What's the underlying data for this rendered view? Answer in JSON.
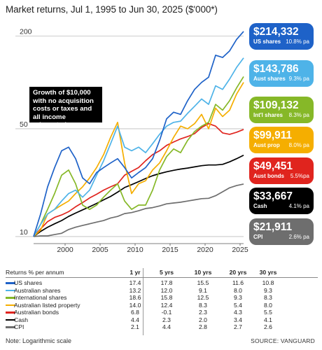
{
  "title": "Market returns, Jul 1, 1995 to  Jun 30, 2025 ($'000*)",
  "annotation": "Growth of $10,000 with no acquisition costs or taxes and all income reinvested",
  "badges": [
    {
      "label": "US shares",
      "rate": "10.8% pa",
      "value": "$214,332",
      "color": "#1e62c8"
    },
    {
      "label": "Aust shares",
      "rate": "9.3% pa",
      "value": "$143,786",
      "color": "#4eb3e8"
    },
    {
      "label": "Int'l shares",
      "rate": "8.3% pa",
      "value": "$109,132",
      "color": "#86b828"
    },
    {
      "label": "Aust prop",
      "rate": "8.0% pa",
      "value": "$99,911",
      "color": "#f5ae00"
    },
    {
      "label": "Aust bonds",
      "rate": "5.5%pa",
      "value": "$49,451",
      "color": "#e0241e"
    },
    {
      "label": "Cash",
      "rate": "4.1% pa",
      "value": "$33,667",
      "color": "#000000"
    },
    {
      "label": "CPI",
      "rate": "2.6% pa",
      "value": "$21,911",
      "color": "#6e6e6e"
    }
  ],
  "table": {
    "header": [
      "Returns % per annum",
      "1 yr",
      "5 yrs",
      "10 yrs",
      "20 yrs",
      "30 yrs"
    ],
    "rows": [
      {
        "name": "US shares",
        "color": "#1e62c8",
        "values": [
          "17.4",
          "17.8",
          "15.5",
          "11.6",
          "10.8"
        ]
      },
      {
        "name": "Australian shares",
        "color": "#4eb3e8",
        "values": [
          "13.2",
          "12.0",
          "9.1",
          "8.0",
          "9.3"
        ]
      },
      {
        "name": "International shares",
        "color": "#86b828",
        "values": [
          "18.6",
          "15.8",
          "12.5",
          "9.3",
          "8.3"
        ]
      },
      {
        "name": "Australian listed property",
        "color": "#f5ae00",
        "values": [
          "14.0",
          "12.4",
          "8.3",
          "5.4",
          "8.0"
        ]
      },
      {
        "name": "Australian bonds",
        "color": "#e0241e",
        "values": [
          "6.8",
          "-0.1",
          "2.3",
          "4.3",
          "5.5"
        ]
      },
      {
        "name": "Cash",
        "color": "#000000",
        "values": [
          "4.4",
          "2.3",
          "2.0",
          "3.4",
          "4.1"
        ]
      },
      {
        "name": "CPI",
        "color": "#6e6e6e",
        "values": [
          "2.1",
          "4.4",
          "2.8",
          "2.7",
          "2.6"
        ]
      }
    ]
  },
  "note": "Note: Logarithmic scale",
  "source": "SOURCE: VANGUARD",
  "chart_data": {
    "type": "line",
    "title": "Market returns, Jul 1, 1995 to  Jun 30, 2025 ($'000*)",
    "xlabel": "",
    "ylabel": "",
    "y_scale": "log",
    "ylim": [
      9,
      250
    ],
    "xlim": [
      1995.5,
      2025.5
    ],
    "x_ticks": [
      2000,
      2005,
      2010,
      2015,
      2020,
      2025
    ],
    "y_ticks": [
      10,
      50,
      200
    ],
    "grid": "horizontal",
    "series": [
      {
        "name": "US shares",
        "color": "#1e62c8",
        "x": [
          1995.5,
          1996.5,
          1997.5,
          1998.5,
          1999.5,
          2000.5,
          2001.5,
          2002.5,
          2003.5,
          2004.5,
          2005.5,
          2006.5,
          2007.5,
          2008.5,
          2009.5,
          2010.5,
          2011.5,
          2012.5,
          2013.5,
          2014.5,
          2015.5,
          2016.5,
          2017.5,
          2018.5,
          2019.5,
          2020.5,
          2021.5,
          2022.5,
          2023.5,
          2024.5,
          2025.5
        ],
        "values": [
          10,
          14,
          21,
          28,
          36,
          38,
          32,
          24,
          22,
          26,
          28,
          30,
          32,
          28,
          24,
          26,
          28,
          32,
          42,
          58,
          64,
          62,
          76,
          90,
          100,
          108,
          150,
          145,
          160,
          190,
          214
        ]
      },
      {
        "name": "Australian shares",
        "color": "#4eb3e8",
        "x": [
          1995.5,
          1996.5,
          1997.5,
          1998.5,
          1999.5,
          2000.5,
          2001.5,
          2002.5,
          2003.5,
          2004.5,
          2005.5,
          2006.5,
          2007.5,
          2008.5,
          2009.5,
          2010.5,
          2011.5,
          2012.5,
          2013.5,
          2014.5,
          2015.5,
          2016.5,
          2017.5,
          2018.5,
          2019.5,
          2020.5,
          2021.5,
          2022.5,
          2023.5,
          2024.5,
          2025.5
        ],
        "values": [
          10,
          12,
          14,
          15,
          17,
          19,
          20,
          18,
          20,
          25,
          31,
          40,
          52,
          38,
          36,
          38,
          35,
          40,
          46,
          52,
          55,
          56,
          63,
          70,
          78,
          72,
          95,
          90,
          105,
          125,
          144
        ]
      },
      {
        "name": "International shares",
        "color": "#86b828",
        "x": [
          1995.5,
          1996.5,
          1997.5,
          1998.5,
          1999.5,
          2000.5,
          2001.5,
          2002.5,
          2003.5,
          2004.5,
          2005.5,
          2006.5,
          2007.5,
          2008.5,
          2009.5,
          2010.5,
          2011.5,
          2012.5,
          2013.5,
          2014.5,
          2015.5,
          2016.5,
          2017.5,
          2018.5,
          2019.5,
          2020.5,
          2021.5,
          2022.5,
          2023.5,
          2024.5,
          2025.5
        ],
        "values": [
          10,
          12,
          15,
          19,
          25,
          27,
          22,
          16,
          15,
          16,
          18,
          20,
          22,
          17,
          15,
          16,
          16,
          20,
          27,
          33,
          37,
          35,
          42,
          48,
          52,
          55,
          72,
          66,
          76,
          92,
          109
        ]
      },
      {
        "name": "Australian listed property",
        "color": "#f5ae00",
        "x": [
          1995.5,
          1996.5,
          1997.5,
          1998.5,
          1999.5,
          2000.5,
          2001.5,
          2002.5,
          2003.5,
          2004.5,
          2005.5,
          2006.5,
          2007.5,
          2008.5,
          2009.5,
          2010.5,
          2011.5,
          2012.5,
          2013.5,
          2014.5,
          2015.5,
          2016.5,
          2017.5,
          2018.5,
          2019.5,
          2020.5,
          2021.5,
          2022.5,
          2023.5,
          2024.5,
          2025.5
        ],
        "values": [
          10,
          11,
          14,
          15,
          16,
          17,
          19,
          21,
          24,
          28,
          34,
          44,
          55,
          30,
          19,
          22,
          23,
          27,
          30,
          36,
          44,
          52,
          50,
          54,
          62,
          50,
          68,
          60,
          66,
          84,
          100
        ]
      },
      {
        "name": "Australian bonds",
        "color": "#e0241e",
        "x": [
          1995.5,
          1996.5,
          1997.5,
          1998.5,
          1999.5,
          2000.5,
          2001.5,
          2002.5,
          2003.5,
          2004.5,
          2005.5,
          2006.5,
          2007.5,
          2008.5,
          2009.5,
          2010.5,
          2011.5,
          2012.5,
          2013.5,
          2014.5,
          2015.5,
          2016.5,
          2017.5,
          2018.5,
          2019.5,
          2020.5,
          2021.5,
          2022.5,
          2023.5,
          2024.5,
          2025.5
        ],
        "values": [
          10,
          11.2,
          12.5,
          13.3,
          13.8,
          14.5,
          15.6,
          16.6,
          17.8,
          18.8,
          20,
          21,
          22,
          25,
          26.5,
          28,
          31,
          34,
          36,
          39,
          41,
          43,
          44.5,
          46.5,
          51,
          54,
          52,
          47,
          46,
          47.5,
          49.5
        ]
      },
      {
        "name": "Cash",
        "color": "#000000",
        "x": [
          1995.5,
          1996.5,
          1997.5,
          1998.5,
          1999.5,
          2000.5,
          2001.5,
          2002.5,
          2003.5,
          2004.5,
          2005.5,
          2006.5,
          2007.5,
          2008.5,
          2009.5,
          2010.5,
          2011.5,
          2012.5,
          2013.5,
          2014.5,
          2015.5,
          2016.5,
          2017.5,
          2018.5,
          2019.5,
          2020.5,
          2021.5,
          2022.5,
          2023.5,
          2024.5,
          2025.5
        ],
        "values": [
          10,
          10.8,
          11.5,
          12.1,
          12.7,
          13.5,
          14.2,
          14.9,
          15.6,
          16.4,
          17.3,
          18.2,
          19.4,
          20.8,
          21.7,
          22.7,
          23.8,
          24.8,
          25.6,
          26.3,
          26.9,
          27.4,
          27.8,
          28.3,
          28.8,
          29.1,
          29.1,
          29.4,
          30.5,
          32,
          33.7
        ]
      },
      {
        "name": "CPI",
        "color": "#6e6e6e",
        "x": [
          1995.5,
          1996.5,
          1997.5,
          1998.5,
          1999.5,
          2000.5,
          2001.5,
          2002.5,
          2003.5,
          2004.5,
          2005.5,
          2006.5,
          2007.5,
          2008.5,
          2009.5,
          2010.5,
          2011.5,
          2012.5,
          2013.5,
          2014.5,
          2015.5,
          2016.5,
          2017.5,
          2018.5,
          2019.5,
          2020.5,
          2021.5,
          2022.5,
          2023.5,
          2024.5,
          2025.5
        ],
        "values": [
          10,
          10.1,
          10.1,
          10.3,
          10.5,
          11.1,
          11.5,
          11.8,
          12.1,
          12.4,
          12.7,
          13.2,
          13.5,
          14.1,
          14.3,
          14.7,
          15.2,
          15.4,
          15.8,
          16.3,
          16.5,
          16.7,
          17.0,
          17.3,
          17.6,
          17.7,
          18.4,
          19.5,
          20.7,
          21.4,
          21.9
        ]
      }
    ]
  }
}
